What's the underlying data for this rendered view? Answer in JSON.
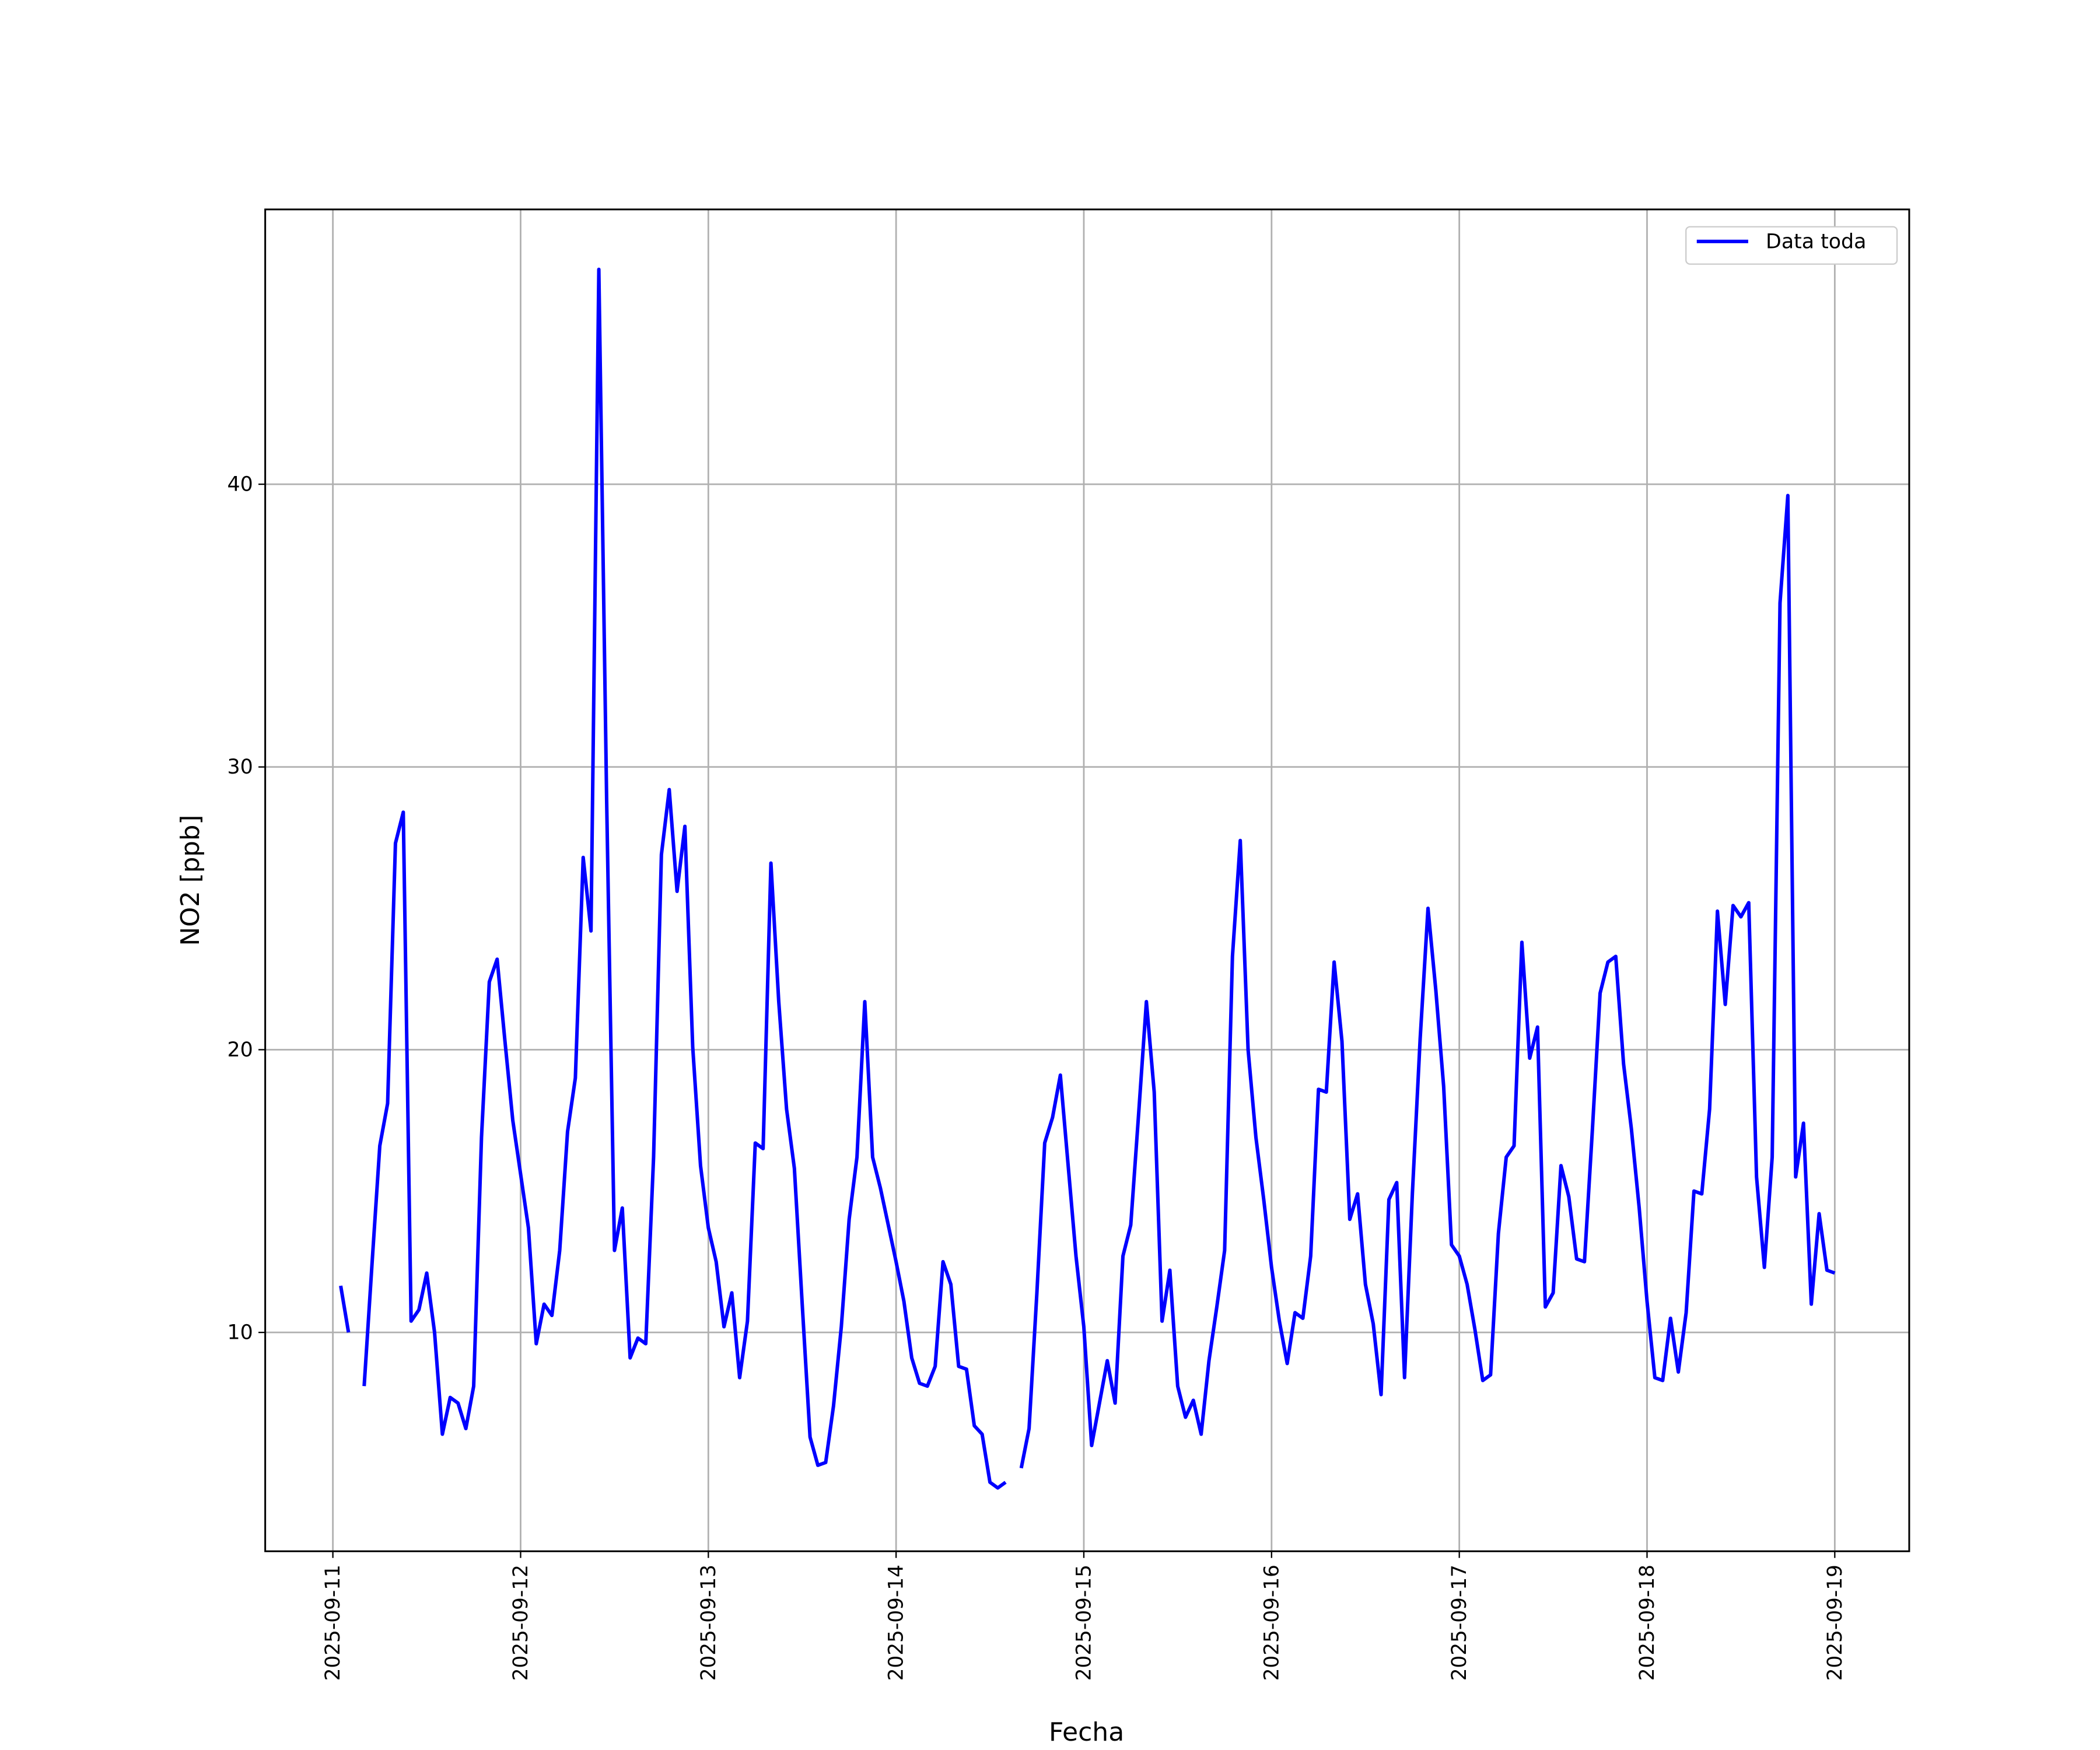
{
  "chart_data": {
    "type": "line",
    "x_label": "Fecha",
    "y_label": "NO2 [ppb]",
    "x": [
      "2025-09-11 01:00",
      "2025-09-11 02:00",
      "2025-09-11 03:00",
      "2025-09-11 04:00",
      "2025-09-11 05:00",
      "2025-09-11 06:00",
      "2025-09-11 07:00",
      "2025-09-11 08:00",
      "2025-09-11 09:00",
      "2025-09-11 10:00",
      "2025-09-11 11:00",
      "2025-09-11 12:00",
      "2025-09-11 13:00",
      "2025-09-11 14:00",
      "2025-09-11 15:00",
      "2025-09-11 16:00",
      "2025-09-11 17:00",
      "2025-09-11 18:00",
      "2025-09-11 19:00",
      "2025-09-11 20:00",
      "2025-09-11 21:00",
      "2025-09-11 22:00",
      "2025-09-11 23:00",
      "2025-09-12 00:00",
      "2025-09-12 01:00",
      "2025-09-12 02:00",
      "2025-09-12 03:00",
      "2025-09-12 04:00",
      "2025-09-12 05:00",
      "2025-09-12 06:00",
      "2025-09-12 07:00",
      "2025-09-12 08:00",
      "2025-09-12 09:00",
      "2025-09-12 10:00",
      "2025-09-12 11:00",
      "2025-09-12 12:00",
      "2025-09-12 13:00",
      "2025-09-12 14:00",
      "2025-09-12 15:00",
      "2025-09-12 16:00",
      "2025-09-12 17:00",
      "2025-09-12 18:00",
      "2025-09-12 19:00",
      "2025-09-12 20:00",
      "2025-09-12 21:00",
      "2025-09-12 22:00",
      "2025-09-12 23:00",
      "2025-09-13 00:00",
      "2025-09-13 01:00",
      "2025-09-13 02:00",
      "2025-09-13 03:00",
      "2025-09-13 04:00",
      "2025-09-13 05:00",
      "2025-09-13 06:00",
      "2025-09-13 07:00",
      "2025-09-13 08:00",
      "2025-09-13 09:00",
      "2025-09-13 10:00",
      "2025-09-13 11:00",
      "2025-09-13 12:00",
      "2025-09-13 13:00",
      "2025-09-13 14:00",
      "2025-09-13 15:00",
      "2025-09-13 16:00",
      "2025-09-13 17:00",
      "2025-09-13 18:00",
      "2025-09-13 19:00",
      "2025-09-13 20:00",
      "2025-09-13 21:00",
      "2025-09-13 22:00",
      "2025-09-13 23:00",
      "2025-09-14 00:00",
      "2025-09-14 01:00",
      "2025-09-14 02:00",
      "2025-09-14 03:00",
      "2025-09-14 04:00",
      "2025-09-14 05:00",
      "2025-09-14 06:00",
      "2025-09-14 07:00",
      "2025-09-14 08:00",
      "2025-09-14 09:00",
      "2025-09-14 10:00",
      "2025-09-14 11:00",
      "2025-09-14 12:00",
      "2025-09-14 13:00",
      "2025-09-14 14:00",
      "2025-09-14 15:00",
      "2025-09-14 16:00",
      "2025-09-14 17:00",
      "2025-09-14 18:00",
      "2025-09-14 19:00",
      "2025-09-14 20:00",
      "2025-09-14 21:00",
      "2025-09-14 22:00",
      "2025-09-14 23:00",
      "2025-09-15 00:00",
      "2025-09-15 01:00",
      "2025-09-15 02:00",
      "2025-09-15 03:00",
      "2025-09-15 04:00",
      "2025-09-15 05:00",
      "2025-09-15 06:00",
      "2025-09-15 07:00",
      "2025-09-15 08:00",
      "2025-09-15 09:00",
      "2025-09-15 10:00",
      "2025-09-15 11:00",
      "2025-09-15 12:00",
      "2025-09-15 13:00",
      "2025-09-15 14:00",
      "2025-09-15 15:00",
      "2025-09-15 16:00",
      "2025-09-15 17:00",
      "2025-09-15 18:00",
      "2025-09-15 19:00",
      "2025-09-15 20:00",
      "2025-09-15 21:00",
      "2025-09-15 22:00",
      "2025-09-15 23:00",
      "2025-09-16 00:00",
      "2025-09-16 01:00",
      "2025-09-16 02:00",
      "2025-09-16 03:00",
      "2025-09-16 04:00",
      "2025-09-16 05:00",
      "2025-09-16 06:00",
      "2025-09-16 07:00",
      "2025-09-16 08:00",
      "2025-09-16 09:00",
      "2025-09-16 10:00",
      "2025-09-16 11:00",
      "2025-09-16 12:00",
      "2025-09-16 13:00",
      "2025-09-16 14:00",
      "2025-09-16 15:00",
      "2025-09-16 16:00",
      "2025-09-16 17:00",
      "2025-09-16 18:00",
      "2025-09-16 19:00",
      "2025-09-16 20:00",
      "2025-09-16 21:00",
      "2025-09-16 22:00",
      "2025-09-16 23:00",
      "2025-09-17 00:00",
      "2025-09-17 01:00",
      "2025-09-17 02:00",
      "2025-09-17 03:00",
      "2025-09-17 04:00",
      "2025-09-17 05:00",
      "2025-09-17 06:00",
      "2025-09-17 07:00",
      "2025-09-17 08:00",
      "2025-09-17 09:00",
      "2025-09-17 10:00",
      "2025-09-17 11:00",
      "2025-09-17 12:00",
      "2025-09-17 13:00",
      "2025-09-17 14:00",
      "2025-09-17 15:00",
      "2025-09-17 16:00",
      "2025-09-17 17:00",
      "2025-09-17 18:00",
      "2025-09-17 19:00",
      "2025-09-17 20:00",
      "2025-09-17 21:00",
      "2025-09-17 22:00",
      "2025-09-17 23:00",
      "2025-09-18 00:00",
      "2025-09-18 01:00",
      "2025-09-18 02:00",
      "2025-09-18 03:00",
      "2025-09-18 04:00",
      "2025-09-18 05:00",
      "2025-09-18 06:00",
      "2025-09-18 07:00",
      "2025-09-18 08:00",
      "2025-09-18 09:00",
      "2025-09-18 10:00",
      "2025-09-18 11:00",
      "2025-09-18 12:00",
      "2025-09-18 13:00",
      "2025-09-18 14:00",
      "2025-09-18 15:00",
      "2025-09-18 16:00",
      "2025-09-18 17:00",
      "2025-09-18 18:00",
      "2025-09-18 19:00",
      "2025-09-18 20:00",
      "2025-09-18 21:00",
      "2025-09-18 22:00",
      "2025-09-18 23:00",
      "2025-09-19 00:00"
    ],
    "series": [
      {
        "name": "Data toda",
        "color": "#0000ff",
        "values": [
          11.65,
          10,
          null,
          8.1,
          12.4,
          16.6,
          18.1,
          27.3,
          28.4,
          10.4,
          10.8,
          12.1,
          10,
          6.4,
          7.7,
          7.5,
          6.6,
          8.1,
          16.9,
          22.4,
          23.2,
          20.3,
          17.5,
          15.6,
          13.7,
          9.6,
          11,
          10.6,
          12.9,
          17.1,
          19,
          26.8,
          24.2,
          47.6,
          28.8,
          12.9,
          14.4,
          9.1,
          9.8,
          9.6,
          16.2,
          26.9,
          29.2,
          25.6,
          27.9,
          20.1,
          15.9,
          13.7,
          12.5,
          10.2,
          11.4,
          8.4,
          10.4,
          16.7,
          16.5,
          26.6,
          21.7,
          17.9,
          15.8,
          11,
          6.3,
          5.3,
          5.4,
          7.4,
          10.2,
          14,
          16.2,
          21.7,
          16.2,
          15.1,
          13.8,
          12.5,
          11.1,
          9.1,
          8.2,
          8.1,
          8.8,
          12.5,
          11.7,
          8.8,
          8.7,
          6.7,
          6.4,
          4.7,
          4.5,
          4.7,
          null,
          5.2,
          6.6,
          11.4,
          16.7,
          17.6,
          19.1,
          15.9,
          12.7,
          10.2,
          6,
          7.5,
          9,
          7.5,
          12.7,
          13.8,
          17.7,
          21.7,
          18.5,
          10.4,
          12.2,
          8.1,
          7,
          7.6,
          6.4,
          9,
          10.9,
          12.9,
          23.3,
          27.4,
          20,
          16.9,
          14.7,
          12.3,
          10.4,
          8.9,
          10.7,
          10.5,
          12.7,
          18.6,
          18.5,
          23.1,
          20.3,
          14,
          14.9,
          11.7,
          10.3,
          7.8,
          14.7,
          15.3,
          8.4,
          14.9,
          20.4,
          25,
          22.1,
          18.7,
          13.1,
          12.7,
          11.7,
          10.1,
          8.3,
          8.5,
          13.5,
          16.2,
          16.6,
          23.8,
          19.7,
          20.8,
          10.9,
          11.4,
          15.9,
          14.8,
          12.6,
          12.5,
          17.1,
          22,
          23.1,
          23.3,
          19.5,
          17.2,
          14.4,
          11.1,
          8.4,
          8.3,
          10.5,
          8.6,
          10.7,
          15,
          14.9,
          17.9,
          24.9,
          21.6,
          25.1,
          24.7,
          25.2,
          15.5,
          12.3,
          16.2,
          35.8,
          39.6,
          15.5,
          17.4,
          11,
          14.2,
          12.2,
          12.1
        ]
      }
    ],
    "xlim": [
      "2025-09-10 15:21",
      "2025-09-19 09:31"
    ],
    "xticks": [
      "2025-09-11",
      "2025-09-12",
      "2025-09-13",
      "2025-09-14",
      "2025-09-15",
      "2025-09-16",
      "2025-09-17",
      "2025-09-18",
      "2025-09-19"
    ],
    "ylim": [
      2.26,
      49.72
    ],
    "yticks": [
      10,
      20,
      30,
      40
    ],
    "grid": true,
    "legend": "upper right"
  }
}
